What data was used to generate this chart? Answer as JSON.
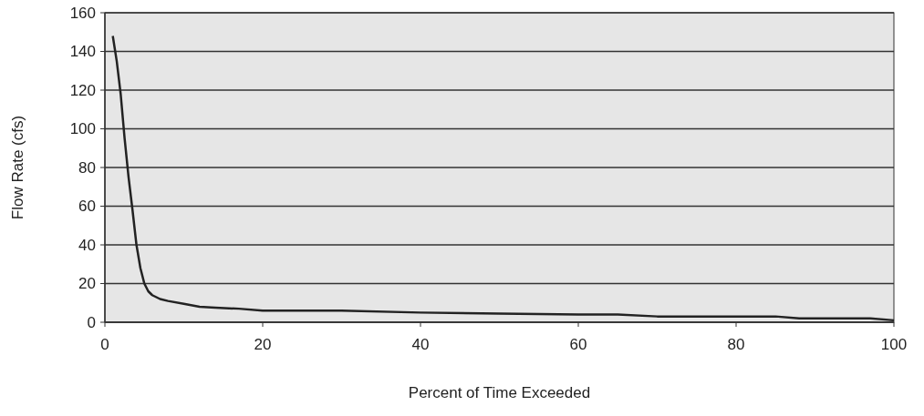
{
  "chart_data": {
    "type": "line",
    "xlabel": "Percent of Time Exceeded",
    "ylabel": "Flow Rate (cfs)",
    "x": [
      1,
      1.5,
      2,
      2.5,
      3,
      3.5,
      4,
      4.5,
      5,
      5.5,
      6,
      7,
      8,
      10,
      12,
      14,
      17,
      20,
      30,
      40,
      50,
      60,
      65,
      70,
      80,
      85,
      88,
      95,
      97,
      100
    ],
    "series": [
      {
        "color": "#222222",
        "values": [
          148,
          135,
          118,
          95,
          75,
          58,
          40,
          28,
          20,
          16,
          14,
          12,
          11,
          9.5,
          8,
          7.5,
          7,
          6,
          6,
          5,
          4.5,
          4,
          4,
          3,
          3,
          3,
          2,
          2,
          2,
          1
        ]
      }
    ],
    "xlim": [
      0,
      100
    ],
    "xticks": [
      0,
      20,
      40,
      60,
      80,
      100
    ],
    "ylim": [
      0,
      160
    ],
    "yticks": [
      0,
      20,
      40,
      60,
      80,
      100,
      120,
      140,
      160
    ],
    "grid": "y",
    "marker": "none",
    "line_style": "solid"
  }
}
